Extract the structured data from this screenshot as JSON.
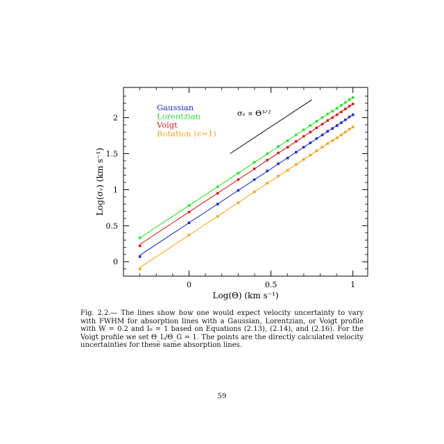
{
  "chart_data": {
    "type": "line",
    "xlabel": "Log(Θ) (km s⁻¹)",
    "ylabel": "Log(σᵥ) (km s⁻¹)",
    "xlim": [
      -0.4,
      1.09
    ],
    "ylim": [
      -0.2,
      2.42
    ],
    "x_ticks": [
      0,
      0.5,
      1
    ],
    "x_tick_labels": [
      "0",
      "0.5",
      "1"
    ],
    "y_ticks": [
      0,
      0.5,
      1,
      1.5,
      2
    ],
    "y_tick_labels": [
      "0",
      "0.5",
      "1",
      "1.5",
      "2"
    ],
    "grid": false,
    "legend_position": "top-left",
    "annotation": {
      "label": "σᵥ ∝ Θ³ᐟ²",
      "slope_line": {
        "x0": 0.25,
        "y0": 1.5,
        "x1": 0.75,
        "y1": 2.25
      }
    },
    "series": [
      {
        "name": "Gaussian",
        "color": "#1f2ec8",
        "intercept": 0.54,
        "slope": 1.5,
        "x": [
          -0.3,
          0.0,
          0.175,
          0.3,
          0.398,
          0.477,
          0.544,
          0.602,
          0.653,
          0.699,
          0.74,
          0.778,
          0.813,
          0.845,
          0.875,
          0.903,
          0.929,
          0.954,
          0.978,
          1.0
        ],
        "y": [
          0.07,
          0.54,
          0.8,
          0.99,
          1.14,
          1.26,
          1.36,
          1.44,
          1.52,
          1.59,
          1.65,
          1.71,
          1.76,
          1.81,
          1.85,
          1.89,
          1.93,
          1.97,
          2.01,
          2.04
        ]
      },
      {
        "name": "Lorentzian",
        "color": "#33dd33",
        "intercept": 0.78,
        "slope": 1.5,
        "x": [
          -0.3,
          0.0,
          0.175,
          0.3,
          0.398,
          0.477,
          0.544,
          0.602,
          0.653,
          0.699,
          0.74,
          0.778,
          0.813,
          0.845,
          0.875,
          0.903,
          0.929,
          0.954,
          0.978,
          1.0
        ],
        "y": [
          0.33,
          0.78,
          1.04,
          1.23,
          1.38,
          1.5,
          1.6,
          1.68,
          1.76,
          1.83,
          1.89,
          1.95,
          2.0,
          2.05,
          2.09,
          2.13,
          2.17,
          2.21,
          2.25,
          2.28
        ]
      },
      {
        "name": "Voigt",
        "color": "#d42020",
        "intercept": 0.69,
        "slope": 1.5,
        "x": [
          -0.3,
          0.0,
          0.175,
          0.3,
          0.398,
          0.477,
          0.544,
          0.602,
          0.653,
          0.699,
          0.74,
          0.778,
          0.813,
          0.845,
          0.875,
          0.903,
          0.929,
          0.954,
          0.978,
          1.0
        ],
        "y": [
          0.22,
          0.69,
          0.95,
          1.14,
          1.29,
          1.41,
          1.51,
          1.59,
          1.67,
          1.74,
          1.8,
          1.86,
          1.91,
          1.96,
          2.0,
          2.04,
          2.08,
          2.12,
          2.16,
          2.19
        ]
      },
      {
        "name": "Rotation (ϵ=1)",
        "color": "#f2a41c",
        "intercept": 0.37,
        "slope": 1.5,
        "x": [
          -0.3,
          0.0,
          0.175,
          0.3,
          0.398,
          0.477,
          0.544,
          0.602,
          0.653,
          0.699,
          0.74,
          0.778,
          0.813,
          0.845,
          0.875,
          0.903,
          0.929,
          0.954,
          0.978,
          1.0
        ],
        "y": [
          -0.1,
          0.37,
          0.63,
          0.82,
          0.97,
          1.09,
          1.19,
          1.27,
          1.35,
          1.42,
          1.48,
          1.54,
          1.59,
          1.64,
          1.68,
          1.72,
          1.76,
          1.8,
          1.84,
          1.87
        ]
      }
    ]
  },
  "caption": {
    "label": "Fig. 2.2.—",
    "text": "The lines show how one would expect velocity uncertainty to vary with FWHM for absorption lines with a Gaussian, Lorentzian, or Voigt profile with W = 0.2 and I₀ = 1 based on Equations (2.13), (2.14), and (2.16). For the Voigt profile we set Θ_L/Θ_G = 1. The points are the directly calculated velocity uncertainties for these same absorption lines."
  },
  "page_number": "59"
}
